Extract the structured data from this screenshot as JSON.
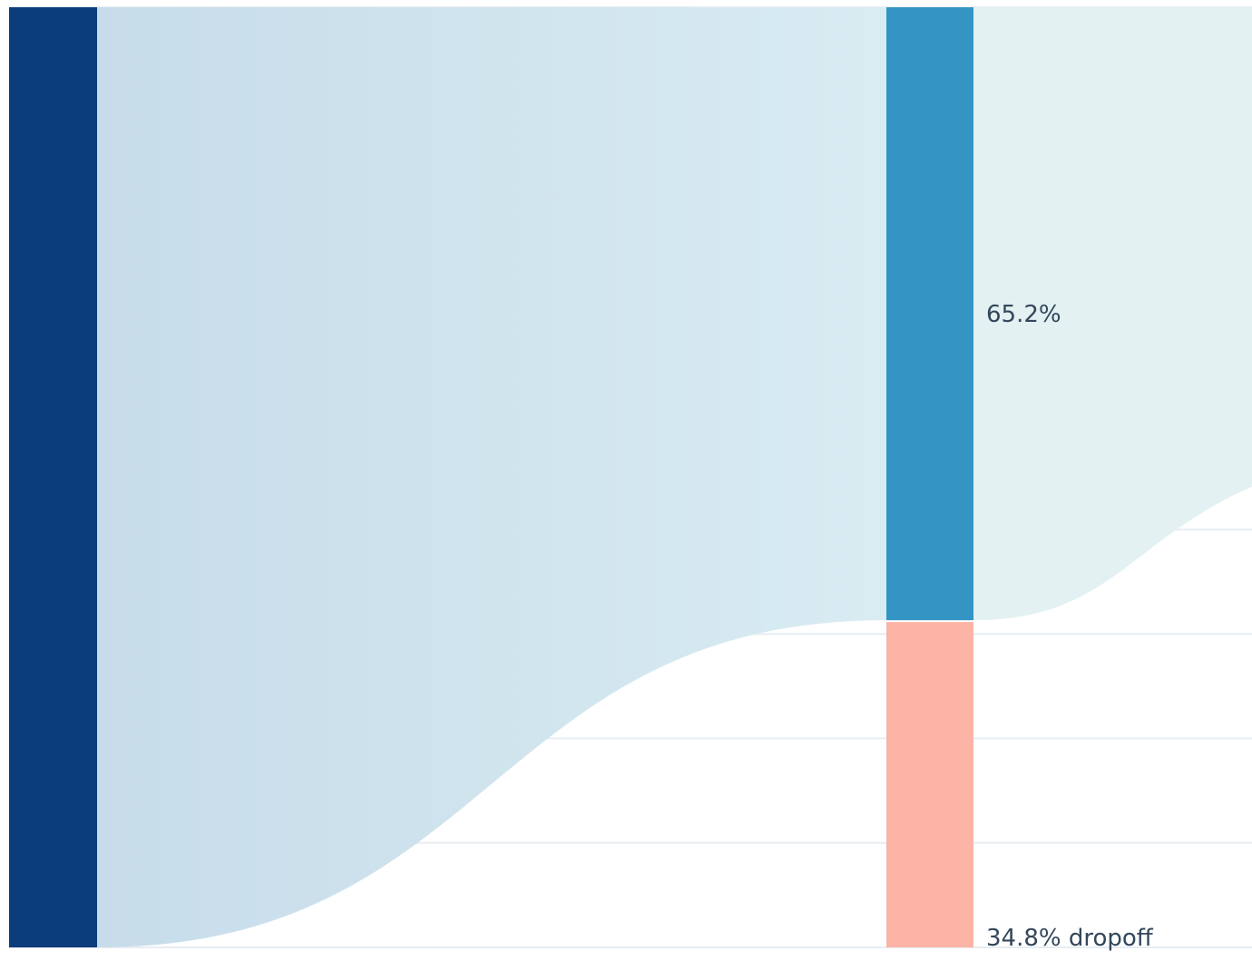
{
  "chart_data": {
    "type": "sankey",
    "steps": [
      {
        "name": "",
        "value": 100.0
      },
      {
        "name": "",
        "value": 65.2
      }
    ],
    "segments": [
      {
        "step": 1,
        "kind": "continued",
        "percent": 65.2,
        "label": "65.2%",
        "color": "#3494c4"
      },
      {
        "step": 1,
        "kind": "dropoff",
        "percent": 34.8,
        "label": "34.8% dropoff",
        "color": "#fbb4a5"
      }
    ],
    "first_bar_color": "#0b3c7c",
    "flow_color_start": "#c7dcea",
    "flow_color_end": "#d9ecf2",
    "outgoing_flow_color": "#e3f1f2",
    "gridlines": 9,
    "grid": true
  }
}
